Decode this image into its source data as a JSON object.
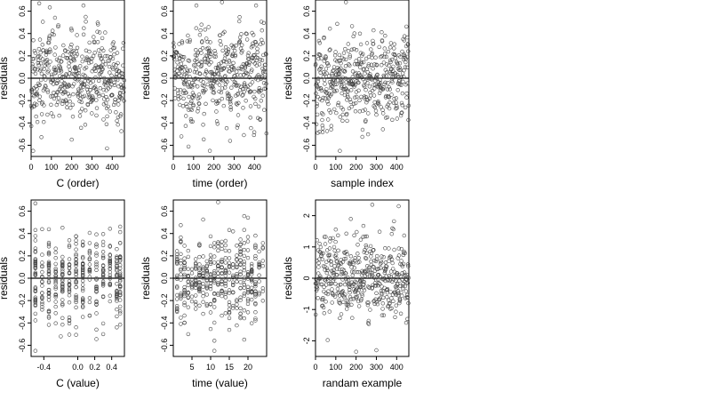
{
  "figure": {
    "background": "#ffffff",
    "point_color": "#444444",
    "line_color": "#000000"
  },
  "chart_data": [
    {
      "type": "scatter",
      "xlabel": "C (order)",
      "ylabel": "residuals",
      "xlim": [
        0,
        460
      ],
      "ylim": [
        -0.7,
        0.7
      ],
      "xticks": [
        0,
        100,
        200,
        300,
        400
      ],
      "yticks": [
        -0.6,
        -0.4,
        -0.2,
        0.0,
        0.2,
        0.4,
        0.6
      ],
      "xtick_labels": [
        "0",
        "100",
        "200",
        "300",
        "400"
      ],
      "ytick_labels": [
        "-0.6",
        "-0.4",
        "-0.2",
        "0.0",
        "0.2",
        "0.4",
        "0.6"
      ],
      "hline": 0,
      "pattern": "order",
      "n": 460,
      "seed": 11,
      "extremes": [
        [
          40,
          0.67
        ],
        [
          10,
          -0.65
        ],
        [
          200,
          -0.55
        ]
      ],
      "y": []
    },
    {
      "type": "scatter",
      "xlabel": "time (order)",
      "ylabel": "residuals",
      "xlim": [
        0,
        460
      ],
      "ylim": [
        -0.7,
        0.7
      ],
      "xticks": [
        0,
        100,
        200,
        300,
        400
      ],
      "yticks": [
        -0.6,
        -0.4,
        -0.2,
        0.0,
        0.2,
        0.4,
        0.6
      ],
      "xtick_labels": [
        "0",
        "100",
        "200",
        "300",
        "400"
      ],
      "ytick_labels": [
        "-0.6",
        "-0.4",
        "-0.2",
        "0.0",
        "0.2",
        "0.4",
        "0.6"
      ],
      "hline": 0,
      "pattern": "order",
      "n": 460,
      "seed": 23,
      "extremes": [
        [
          240,
          0.68
        ],
        [
          180,
          -0.65
        ],
        [
          40,
          -0.52
        ]
      ],
      "y": []
    },
    {
      "type": "scatter",
      "xlabel": "sample index",
      "ylabel": "residuals",
      "xlim": [
        0,
        460
      ],
      "ylim": [
        -0.7,
        0.7
      ],
      "xticks": [
        0,
        100,
        200,
        300,
        400
      ],
      "yticks": [
        -0.6,
        -0.4,
        -0.2,
        0.0,
        0.2,
        0.4,
        0.6
      ],
      "xtick_labels": [
        "0",
        "100",
        "200",
        "300",
        "400"
      ],
      "ytick_labels": [
        "-0.6",
        "-0.4",
        "-0.2",
        "0.0",
        "0.2",
        "0.4",
        "0.6"
      ],
      "hline": 0,
      "pattern": "order",
      "n": 460,
      "seed": 37,
      "extremes": [
        [
          150,
          0.68
        ],
        [
          120,
          -0.65
        ],
        [
          20,
          -0.48
        ]
      ],
      "y": []
    },
    {
      "type": "scatter",
      "xlabel": "C (value)",
      "ylabel": "residuals",
      "xlim": [
        -0.55,
        0.55
      ],
      "ylim": [
        -0.7,
        0.7
      ],
      "xticks": [
        -0.4,
        0.0,
        0.2,
        0.4
      ],
      "yticks": [
        -0.6,
        -0.4,
        -0.2,
        0.0,
        0.2,
        0.4,
        0.6
      ],
      "xtick_labels": [
        "-0.4",
        "0.0",
        "0.2",
        "0.4"
      ],
      "ytick_labels": [
        "-0.6",
        "-0.4",
        "-0.2",
        "0.0",
        "0.2",
        "0.4",
        "0.6"
      ],
      "hline": 0,
      "pattern": "columns",
      "columns": [
        -0.5,
        -0.42,
        -0.34,
        -0.26,
        -0.18,
        -0.1,
        -0.02,
        0.06,
        0.14,
        0.22,
        0.3,
        0.38,
        0.46,
        0.5
      ],
      "n": 420,
      "seed": 53,
      "extremes": [
        [
          -0.5,
          0.67
        ],
        [
          -0.5,
          -0.65
        ],
        [
          0.3,
          -0.5
        ],
        [
          -0.2,
          -0.52
        ]
      ],
      "y": []
    },
    {
      "type": "scatter",
      "xlabel": "time (value)",
      "ylabel": "residuals",
      "xlim": [
        0,
        25
      ],
      "ylim": [
        -0.7,
        0.7
      ],
      "xticks": [
        5,
        10,
        15,
        20
      ],
      "yticks": [
        -0.6,
        -0.4,
        -0.2,
        0.0,
        0.2,
        0.4,
        0.6
      ],
      "xtick_labels": [
        "5",
        "10",
        "15",
        "20"
      ],
      "ytick_labels": [
        "-0.6",
        "-0.4",
        "-0.2",
        "0.0",
        "0.2",
        "0.4",
        "0.6"
      ],
      "hline": 0,
      "pattern": "columns",
      "columns": [
        1,
        2,
        3,
        4,
        5,
        6,
        7,
        8,
        9,
        10,
        11,
        12,
        13,
        14,
        15,
        16,
        17,
        18,
        19,
        20,
        21,
        22,
        23,
        24
      ],
      "n": 420,
      "seed": 71,
      "extremes": [
        [
          12,
          0.68
        ],
        [
          4,
          -0.5
        ],
        [
          11,
          -0.65
        ],
        [
          19,
          -0.55
        ]
      ],
      "y": []
    },
    {
      "type": "scatter",
      "xlabel": "randam example",
      "ylabel": "residuals",
      "xlim": [
        0,
        460
      ],
      "ylim": [
        -2.5,
        2.5
      ],
      "xticks": [
        0,
        100,
        200,
        300,
        400
      ],
      "yticks": [
        -2,
        -1,
        0,
        1,
        2
      ],
      "xtick_labels": [
        "0",
        "100",
        "200",
        "300",
        "400"
      ],
      "ytick_labels": [
        "-2",
        "-1",
        "0",
        "1",
        "2"
      ],
      "hline": 0,
      "pattern": "order",
      "scale": 3.3,
      "n": 460,
      "seed": 97,
      "extremes": [
        [
          280,
          2.35
        ],
        [
          410,
          2.3
        ],
        [
          200,
          -2.35
        ],
        [
          300,
          -2.3
        ]
      ],
      "y": []
    }
  ]
}
